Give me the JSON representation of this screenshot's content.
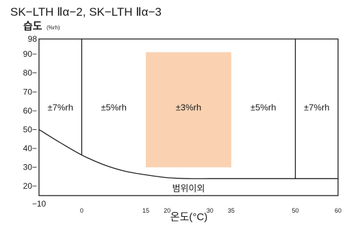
{
  "header": {
    "title": "SK−LTH Ⅱα−2, SK−LTH Ⅱα−3",
    "ylabel": "습도",
    "yunit": "(%rh)"
  },
  "chart_data": {
    "type": "area",
    "xlabel": "온도(°C)",
    "ylabel": "습도",
    "yunit": "(%rh)",
    "xlim": [
      -10,
      60
    ],
    "ylim": [
      15,
      98
    ],
    "x_ticks": [
      {
        "value": -10,
        "label": "−10",
        "size": "large"
      },
      {
        "value": 0,
        "label": "0",
        "size": "small"
      },
      {
        "value": 15,
        "label": "15",
        "size": "small"
      },
      {
        "value": 20,
        "label": "20",
        "size": "small"
      },
      {
        "value": 30,
        "label": "30",
        "size": "small"
      },
      {
        "value": 35,
        "label": "35",
        "size": "small"
      },
      {
        "value": 50,
        "label": "50",
        "size": "small"
      },
      {
        "value": 60,
        "label": "60",
        "size": "small"
      }
    ],
    "y_ticks": [
      {
        "value": 98,
        "label": "98"
      },
      {
        "value": 90,
        "label": "90−"
      },
      {
        "value": 80,
        "label": "80−"
      },
      {
        "value": 70,
        "label": "70−"
      },
      {
        "value": 60,
        "label": "60−"
      },
      {
        "value": 50,
        "label": "50−"
      },
      {
        "value": 40,
        "label": "40−"
      },
      {
        "value": 30,
        "label": "30−"
      },
      {
        "value": 20,
        "label": "20−"
      }
    ],
    "boundary_lines_x": [
      0,
      50
    ],
    "lower_limit_curve": {
      "x": [
        -10,
        -5,
        0,
        5,
        10,
        15,
        20,
        25,
        30,
        35,
        40,
        45,
        50,
        60
      ],
      "y": [
        50,
        43,
        36.5,
        31.5,
        28,
        26,
        24.5,
        24,
        24,
        24,
        24,
        24,
        24,
        24
      ]
    },
    "highlight_region": {
      "x": [
        15,
        35
      ],
      "y": [
        30,
        91
      ],
      "color": "#fad2b2"
    },
    "zones": [
      {
        "label": "±7%rh",
        "x": -5,
        "y": 62
      },
      {
        "label": "±5%rh",
        "x": 7.5,
        "y": 62
      },
      {
        "label": "±3%rh",
        "x": 25,
        "y": 62
      },
      {
        "label": "±5%rh",
        "x": 42.5,
        "y": 62
      },
      {
        "label": "±7%rh",
        "x": 55,
        "y": 62
      },
      {
        "label": "범위이외",
        "x": 25,
        "y": 19
      }
    ],
    "grid": false,
    "legend": "none"
  }
}
